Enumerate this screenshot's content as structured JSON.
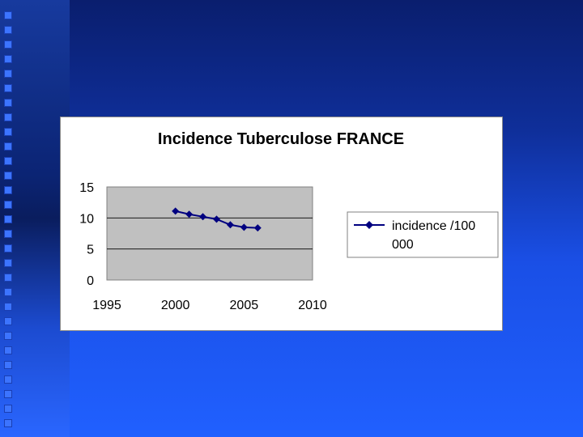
{
  "colors": {
    "series": "#000080",
    "plot_background": "#c0c0c0",
    "chart_background": "#ffffff",
    "slide_background": "#1a4fe6"
  },
  "chart_data": {
    "type": "scatter",
    "title": "Incidence Tuberculose FRANCE",
    "xlabel": "",
    "ylabel": "",
    "xlim": [
      1995,
      2010
    ],
    "ylim": [
      0,
      15
    ],
    "x_ticks": [
      "1995",
      "2000",
      "2005",
      "2010"
    ],
    "y_ticks": [
      "0",
      "5",
      "10",
      "15"
    ],
    "grid": "horizontal",
    "legend_position": "right",
    "series": [
      {
        "name": "incidence /100 000",
        "legend_lines": [
          "incidence /100",
          "000"
        ],
        "marker": "diamond",
        "line": true,
        "x": [
          2000,
          2001,
          2002,
          2003,
          2004,
          2005,
          2006
        ],
        "y": [
          11.1,
          10.6,
          10.2,
          9.8,
          8.9,
          8.5,
          8.4
        ]
      }
    ]
  }
}
